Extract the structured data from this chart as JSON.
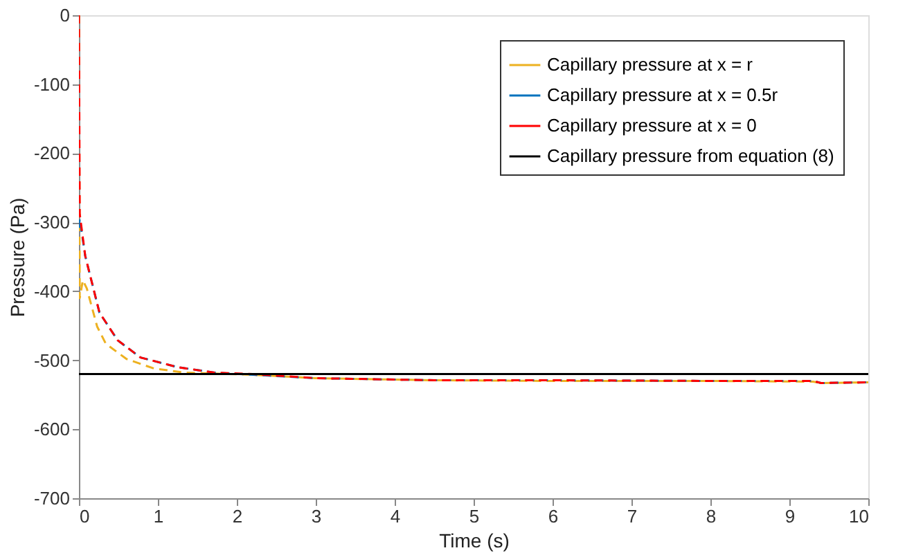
{
  "chart_data": {
    "type": "line",
    "xlabel": "Time (s)",
    "ylabel": "Pressure (Pa)",
    "xlim": [
      0,
      10
    ],
    "xticks": [
      0,
      1,
      2,
      3,
      4,
      5,
      6,
      7,
      8,
      9,
      10
    ],
    "ylim": [
      -700,
      0
    ],
    "yticks": [
      -700,
      -600,
      -500,
      -400,
      -300,
      -200,
      -100,
      0
    ],
    "grid": false,
    "legend": "top right",
    "series": [
      {
        "name": "Capillary pressure at x = r",
        "color": "#edb120",
        "line_style": "dashed",
        "x": [
          0,
          0.01,
          0.05,
          0.1,
          0.23,
          0.34,
          0.6,
          0.95,
          1.35,
          2.2,
          3,
          4.5,
          6,
          8,
          9.3,
          9.4,
          10
        ],
        "values": [
          0,
          -410,
          -384,
          -396,
          -451,
          -476,
          -498,
          -512,
          -518,
          -521,
          -526,
          -529,
          -530,
          -530,
          -531,
          -533,
          -532
        ]
      },
      {
        "name": "Capillary pressure at x = 0.5r",
        "color": "#0072bd",
        "line_style": "dashed",
        "x": [
          0,
          0.01,
          0.08,
          0.26,
          0.49,
          0.78,
          1.25,
          1.72,
          2.2,
          3,
          4.5,
          6,
          8,
          9.3,
          9.4,
          10
        ],
        "values": [
          -308,
          -295,
          -349,
          -431,
          -471,
          -496,
          -510,
          -518,
          -521,
          -526,
          -529,
          -529,
          -530,
          -530,
          -533,
          -532
        ]
      },
      {
        "name": "Capillary pressure at x = 0",
        "color": "#ff0000",
        "line_style": "dashed",
        "x": [
          0,
          0.01,
          0.08,
          0.26,
          0.49,
          0.78,
          1.25,
          1.72,
          2.2,
          3,
          4.5,
          6,
          8,
          9.3,
          9.4,
          10
        ],
        "values": [
          0,
          -288,
          -349,
          -431,
          -471,
          -496,
          -510,
          -518,
          -520,
          -526,
          -529,
          -529,
          -530,
          -530,
          -533,
          -532
        ]
      },
      {
        "name": "Capillary pressure from equation (8)",
        "color": "#000000",
        "line_style": "solid",
        "x": [
          0,
          10
        ],
        "values": [
          -520,
          -520
        ]
      }
    ]
  }
}
